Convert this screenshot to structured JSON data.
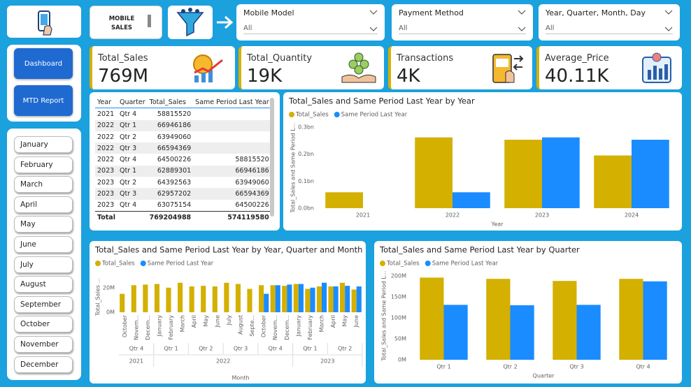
{
  "header": {
    "title": "MOBILE SALES"
  },
  "slicers": [
    {
      "label": "Mobile Model",
      "selection": "All"
    },
    {
      "label": "Payment Method",
      "selection": "All"
    },
    {
      "label": "Year, Quarter, Month, Day",
      "selection": "All"
    }
  ],
  "nav": {
    "buttons": [
      "Dashboard",
      "MTD Report"
    ]
  },
  "months": [
    "January",
    "February",
    "March",
    "April",
    "May",
    "June",
    "July",
    "August",
    "September",
    "October",
    "November",
    "December"
  ],
  "kpis": [
    {
      "label": "Total_Sales",
      "value": "769M"
    },
    {
      "label": "Total_Quantity",
      "value": "19K"
    },
    {
      "label": "Transactions",
      "value": "4K"
    },
    {
      "label": "Average_Price",
      "value": "40.11K"
    }
  ],
  "table": {
    "columns": [
      "Year",
      "Quarter",
      "Total_Sales",
      "Same Period Last Year"
    ],
    "rows": [
      [
        2021,
        "Qtr 4",
        58815520,
        null
      ],
      [
        2022,
        "Qtr 1",
        66946186,
        null
      ],
      [
        2022,
        "Qtr 2",
        63949060,
        null
      ],
      [
        2022,
        "Qtr 3",
        66594369,
        null
      ],
      [
        2022,
        "Qtr 4",
        64500226,
        58815520
      ],
      [
        2023,
        "Qtr 1",
        62889301,
        66946186
      ],
      [
        2023,
        "Qtr 2",
        64392563,
        63949060
      ],
      [
        2023,
        "Qtr 3",
        62957202,
        66594369
      ],
      [
        2023,
        "Qtr 4",
        63075154,
        64500226
      ]
    ],
    "total": [
      "Total",
      null,
      769204988,
      574119580
    ]
  },
  "chart_data": [
    {
      "type": "bar",
      "title": "Total_Sales and Same Period Last Year by Year",
      "x_title": "Year",
      "y_title": "Total_Sales and Same Period L...",
      "categories": [
        "2021",
        "2022",
        "2023",
        "2024"
      ],
      "series": [
        {
          "name": "Total_Sales",
          "color": "#d4b000",
          "values": [
            0.0588,
            0.262,
            0.2533,
            0.1951
          ]
        },
        {
          "name": "Same Period Last Year",
          "color": "#1a8cff",
          "values": [
            null,
            0.0588,
            0.262,
            0.2533
          ]
        }
      ],
      "ylim": [
        0,
        0.3
      ],
      "yticks": [
        {
          "value": 0,
          "label": "0.0bn"
        },
        {
          "value": 0.1,
          "label": "0.1bn"
        },
        {
          "value": 0.2,
          "label": "0.2bn"
        },
        {
          "value": 0.3,
          "label": "0.3bn"
        }
      ],
      "grid": false
    },
    {
      "type": "bar",
      "title": "Total_Sales and Same Period Last Year by Year, Quarter and Month",
      "x_title": "Month",
      "y_title": "Total_Sales ...",
      "categories": [
        "October",
        "Novem...",
        "Decem...",
        "January",
        "February",
        "March",
        "April",
        "May",
        "June",
        "July",
        "August",
        "Septe...",
        "October",
        "Novem...",
        "Decem...",
        "January",
        "February",
        "March",
        "April",
        "May",
        "June"
      ],
      "quarters": [
        "Qtr 4",
        "Qtr 4",
        "Qtr 4",
        "Qtr 1",
        "Qtr 1",
        "Qtr 1",
        "Qtr 2",
        "Qtr 2",
        "Qtr 2",
        "Qtr 3",
        "Qtr 3",
        "Qtr 3",
        "Qtr 4",
        "Qtr 4",
        "Qtr 4",
        "Qtr 1",
        "Qtr 1",
        "Qtr 1",
        "Qtr 2",
        "Qtr 2",
        "Qtr 2"
      ],
      "years": [
        "2021",
        "2021",
        "2021",
        "2022",
        "2022",
        "2022",
        "2022",
        "2022",
        "2022",
        "2022",
        "2022",
        "2022",
        "2022",
        "2022",
        "2022",
        "2023",
        "2023",
        "2023",
        "2023",
        "2023",
        "2023"
      ],
      "series": [
        {
          "name": "Total_Sales",
          "color": "#d4b000",
          "values": [
            15,
            22,
            22.5,
            23,
            20,
            24,
            21,
            21.5,
            21,
            24,
            23,
            19,
            22,
            22,
            21.5,
            23,
            19,
            21,
            21,
            24,
            18.5
          ]
        },
        {
          "name": "Same Period Last Year",
          "color": "#1a8cff",
          "values": [
            null,
            null,
            null,
            null,
            null,
            null,
            null,
            null,
            null,
            null,
            null,
            null,
            15,
            22,
            22.5,
            23,
            20,
            24,
            21,
            21.5,
            21
          ]
        }
      ],
      "ylim": [
        0,
        25
      ],
      "yticks": [
        {
          "value": 0,
          "label": "0M"
        },
        {
          "value": 20,
          "label": "20M"
        }
      ],
      "grid": false
    },
    {
      "type": "bar",
      "title": "Total_Sales and Same Period Last Year by Quarter",
      "x_title": "Quarter",
      "y_title": "Total_Sales and Same Period L...",
      "categories": [
        "Qtr 1",
        "Qtr 2",
        "Qtr 3",
        "Qtr 4"
      ],
      "series": [
        {
          "name": "Total_Sales",
          "color": "#d4b000",
          "values": [
            196,
            193,
            188,
            193
          ]
        },
        {
          "name": "Same Period Last Year",
          "color": "#1a8cff",
          "values": [
            131,
            130,
            131,
            187
          ]
        }
      ],
      "ylim": [
        0,
        210
      ],
      "yticks": [
        {
          "value": 0,
          "label": "0M"
        },
        {
          "value": 50,
          "label": "50M"
        },
        {
          "value": 100,
          "label": "100M"
        },
        {
          "value": 150,
          "label": "150M"
        },
        {
          "value": 200,
          "label": "200M"
        }
      ],
      "grid": false
    }
  ]
}
